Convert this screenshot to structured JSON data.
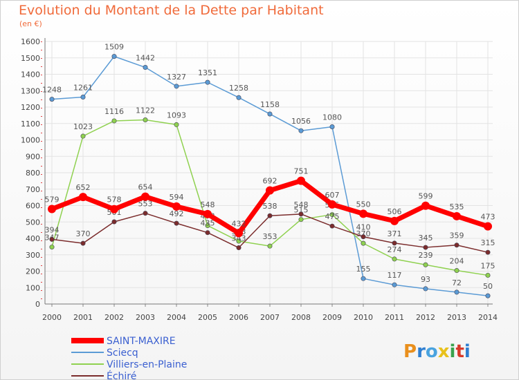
{
  "title": "Evolution du Montant de la Dette par Habitant",
  "subtitle": "(en €)",
  "logo": {
    "text": "Proxiti"
  },
  "colors": {
    "saint_maxire": "#ff0000",
    "sciecq": "#5b9bd5",
    "villiers": "#8fd14f",
    "echire": "#7b2c2c",
    "title": "#f06a3a"
  },
  "chart_data": {
    "type": "line",
    "title": "Evolution du Montant de la Dette par Habitant",
    "ylabel": "(en €)",
    "ylim": [
      0,
      1600
    ],
    "yticks": [
      0,
      100,
      200,
      300,
      400,
      500,
      600,
      700,
      800,
      900,
      1000,
      1100,
      1200,
      1300,
      1400,
      1500,
      1600
    ],
    "grid": true,
    "legend": "bottom-left",
    "x": [
      "2000",
      "2001",
      "2002",
      "2003",
      "2004",
      "2005",
      "2006",
      "2007",
      "2008",
      "2009",
      "2010",
      "2011",
      "2012",
      "2013",
      "2014"
    ],
    "series": [
      {
        "name": "Sciecq",
        "color": "#5b9bd5",
        "values": [
          1248,
          1261,
          1509,
          1442,
          1327,
          1351,
          1258,
          1158,
          1056,
          1080,
          155,
          117,
          93,
          72,
          50
        ]
      },
      {
        "name": "Villiers-en-Plaine",
        "color": "#8fd14f",
        "values": [
          347,
          1023,
          1116,
          1122,
          1093,
          478,
          383,
          353,
          515,
          545,
          370,
          274,
          239,
          204,
          175
        ]
      },
      {
        "name": "Échiré",
        "color": "#7b2c2c",
        "values": [
          394,
          370,
          501,
          553,
          492,
          435,
          343,
          538,
          548,
          475,
          410,
          371,
          345,
          359,
          315
        ]
      },
      {
        "name": "SAINT-MAXIRE",
        "color": "#ff0000",
        "values": [
          579,
          652,
          578,
          654,
          594,
          548,
          432,
          692,
          751,
          607,
          550,
          506,
          599,
          535,
          473
        ]
      }
    ]
  }
}
